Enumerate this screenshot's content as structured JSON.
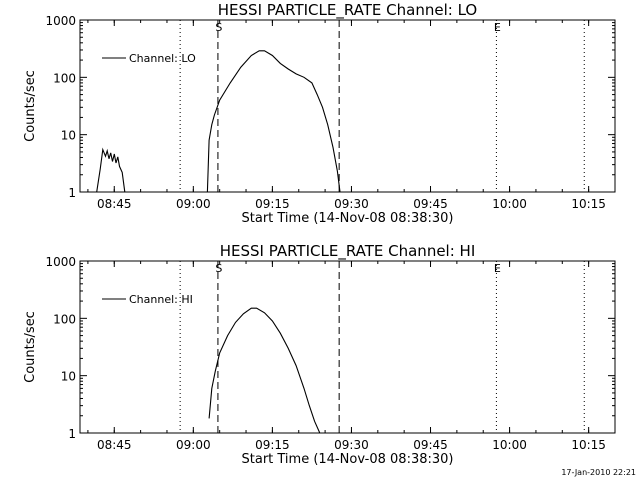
{
  "chart_data": [
    {
      "type": "line",
      "title": "HESSI PARTICLE_RATE Channel: LO",
      "xlabel": "Start Time (14-Nov-08 08:38:30)",
      "ylabel": "Counts/sec",
      "y_scale": "log",
      "ylim": [
        1,
        1000
      ],
      "xlim": [
        "08:38:30",
        "10:20:00"
      ],
      "x_ticks": [
        "08:45",
        "09:00",
        "09:15",
        "09:30",
        "09:45",
        "10:00",
        "10:15"
      ],
      "y_ticks": [
        "1",
        "10",
        "100",
        "1000"
      ],
      "legend": {
        "position": "top-left",
        "entries": [
          "Channel: LO"
        ]
      },
      "markers": {
        "dotted": [
          "08:57:30",
          "09:57:30",
          "10:14:10"
        ],
        "dashed": [
          "09:04:40",
          "09:27:40"
        ],
        "labels": [
          {
            "text": "S",
            "at": "09:04:40"
          },
          {
            "text": "E",
            "at": "09:57:30"
          }
        ]
      },
      "series": [
        {
          "name": "Channel: LO",
          "segments": [
            [
              [
                "08:41:40",
                1
              ],
              [
                "08:42:20",
                2.5
              ],
              [
                "08:42:50",
                5.5
              ],
              [
                "08:43:20",
                4.2
              ],
              [
                "08:43:40",
                5.2
              ],
              [
                "08:44:00",
                3.8
              ],
              [
                "08:44:20",
                4.8
              ],
              [
                "08:44:40",
                3.4
              ],
              [
                "08:45:00",
                4.6
              ],
              [
                "08:45:20",
                3.2
              ],
              [
                "08:45:40",
                4.1
              ],
              [
                "08:46:00",
                2.8
              ],
              [
                "08:46:30",
                2.2
              ],
              [
                "08:47:00",
                1
              ]
            ],
            [
              [
                "09:02:40",
                1
              ],
              [
                "09:03:00",
                8
              ],
              [
                "09:03:30",
                15
              ],
              [
                "09:04:00",
                22
              ],
              [
                "09:05:00",
                40
              ],
              [
                "09:07:00",
                80
              ],
              [
                "09:09:00",
                150
              ],
              [
                "09:11:00",
                240
              ],
              [
                "09:12:30",
                290
              ],
              [
                "09:13:30",
                290
              ],
              [
                "09:15:00",
                240
              ],
              [
                "09:16:30",
                175
              ],
              [
                "09:18:00",
                140
              ],
              [
                "09:19:30",
                115
              ],
              [
                "09:21:00",
                100
              ],
              [
                "09:22:30",
                80
              ],
              [
                "09:23:30",
                50
              ],
              [
                "09:24:30",
                30
              ],
              [
                "09:25:30",
                15
              ],
              [
                "09:26:30",
                6
              ],
              [
                "09:27:20",
                2.3
              ],
              [
                "09:27:50",
                1
              ]
            ]
          ]
        }
      ],
      "footer_stamp": ""
    },
    {
      "type": "line",
      "title": "HESSI PARTICLE_RATE Channel: HI",
      "xlabel": "Start Time (14-Nov-08 08:38:30)",
      "ylabel": "Counts/sec",
      "y_scale": "log",
      "ylim": [
        1,
        1000
      ],
      "xlim": [
        "08:38:30",
        "10:20:00"
      ],
      "x_ticks": [
        "08:45",
        "09:00",
        "09:15",
        "09:30",
        "09:45",
        "10:00",
        "10:15"
      ],
      "y_ticks": [
        "1",
        "10",
        "100",
        "1000"
      ],
      "legend": {
        "position": "top-left",
        "entries": [
          "Channel: HI"
        ]
      },
      "markers": {
        "dotted": [
          "08:57:30",
          "09:57:30",
          "10:14:10"
        ],
        "dashed": [
          "09:04:40",
          "09:27:40"
        ],
        "labels": [
          {
            "text": "S",
            "at": "09:04:40"
          },
          {
            "text": "E",
            "at": "09:57:30"
          }
        ]
      },
      "series": [
        {
          "name": "Channel: HI",
          "segments": [
            [
              [
                "09:03:00",
                1.8
              ],
              [
                "09:03:30",
                6
              ],
              [
                "09:04:10",
                12
              ],
              [
                "09:05:00",
                25
              ],
              [
                "09:06:30",
                50
              ],
              [
                "09:08:00",
                85
              ],
              [
                "09:09:30",
                120
              ],
              [
                "09:11:00",
                150
              ],
              [
                "09:12:00",
                150
              ],
              [
                "09:13:30",
                125
              ],
              [
                "09:15:00",
                90
              ],
              [
                "09:16:30",
                55
              ],
              [
                "09:18:00",
                30
              ],
              [
                "09:19:30",
                15
              ],
              [
                "09:21:00",
                6
              ],
              [
                "09:22:00",
                3
              ],
              [
                "09:23:00",
                1.6
              ],
              [
                "09:24:00",
                1
              ]
            ]
          ]
        }
      ],
      "footer_stamp": "17-Jan-2010 22:21"
    }
  ]
}
